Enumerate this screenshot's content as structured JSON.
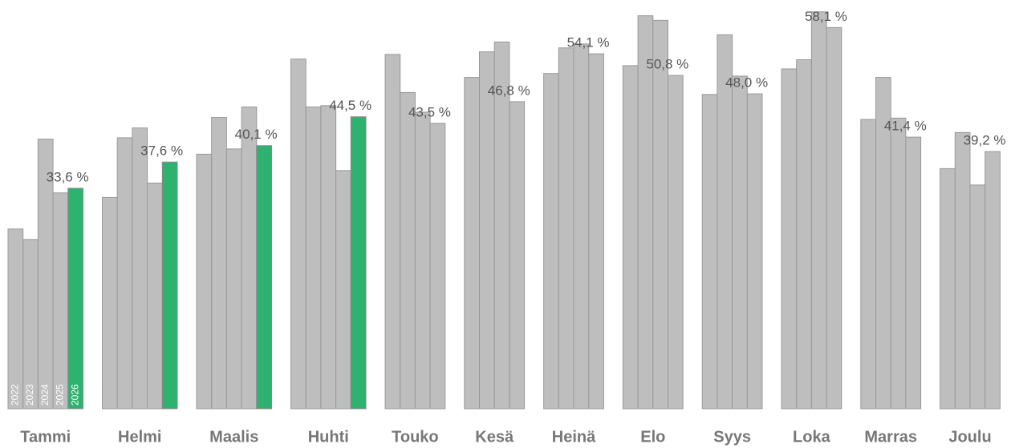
{
  "chart_data": {
    "type": "bar",
    "categories": [
      "Tammi",
      "Helmi",
      "Maalis",
      "Huhti",
      "Touko",
      "Kesä",
      "Heinä",
      "Elo",
      "Syys",
      "Loka",
      "Marras",
      "Joulu"
    ],
    "series": [
      {
        "name": "2022",
        "color": "#bebebe",
        "values": [
          27.4,
          32.2,
          38.8,
          53.3,
          54.0,
          50.5,
          51.1,
          52.3,
          47.9,
          51.8,
          44.1,
          36.6
        ]
      },
      {
        "name": "2023",
        "color": "#bebebe",
        "values": [
          25.8,
          41.3,
          44.4,
          46.0,
          48.2,
          54.4,
          55.0,
          59.9,
          57.0,
          53.2,
          50.5,
          42.1
        ]
      },
      {
        "name": "2024",
        "color": "#bebebe",
        "values": [
          41.1,
          42.8,
          39.6,
          46.2,
          45.2,
          55.9,
          55.6,
          59.2,
          50.7,
          60.5,
          44.3,
          34.1
        ]
      },
      {
        "name": "2025",
        "color": "#bebebe",
        "values": [
          32.9,
          34.4,
          46.0,
          36.3,
          43.5,
          46.8,
          54.1,
          50.8,
          48.0,
          58.1,
          41.4,
          39.2
        ],
        "value_labels": [
          null,
          null,
          null,
          null,
          "43,5 %",
          "46,8 %",
          "54,1 %",
          "50,8 %",
          "48,0 %",
          "58,1 %",
          "41,4 %",
          "39,2 %"
        ]
      },
      {
        "name": "2026",
        "color": "#2db36f",
        "values": [
          33.6,
          37.6,
          40.1,
          44.5,
          null,
          null,
          null,
          null,
          null,
          null,
          null,
          null
        ],
        "value_labels": [
          "33,6 %",
          "37,6 %",
          "40,1 %",
          "44,5 %",
          null,
          null,
          null,
          null,
          null,
          null,
          null,
          null
        ]
      }
    ],
    "ylim": [
      0,
      62.3
    ]
  }
}
